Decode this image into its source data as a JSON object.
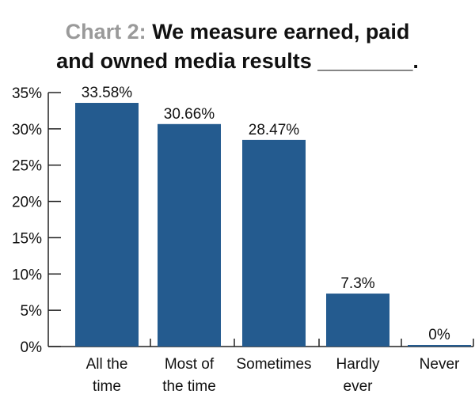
{
  "chart_data": {
    "type": "bar",
    "title_prefix": "Chart 2:",
    "title_line1": "We measure earned, paid",
    "title_line2": "and owned media results ________.",
    "categories": [
      [
        "All the",
        "time"
      ],
      [
        "Most of",
        "the time"
      ],
      [
        "Sometimes"
      ],
      [
        "Hardly",
        "ever"
      ],
      [
        "Never"
      ]
    ],
    "values": [
      33.58,
      30.66,
      28.47,
      7.3,
      0
    ],
    "value_labels": [
      "33.58%",
      "30.66%",
      "28.47%",
      "7.3%",
      "0%"
    ],
    "ylim": [
      0,
      35
    ],
    "yticks": [
      0,
      5,
      10,
      15,
      20,
      25,
      30,
      35
    ],
    "ytick_labels": [
      "0%",
      "5%",
      "10%",
      "15%",
      "20%",
      "25%",
      "30%",
      "35%"
    ],
    "xlabel": "",
    "ylabel": "",
    "grid": false,
    "colors": {
      "bar": "#245b8f",
      "axis": "#222222",
      "title_prefix": "#9a9a9a"
    }
  }
}
